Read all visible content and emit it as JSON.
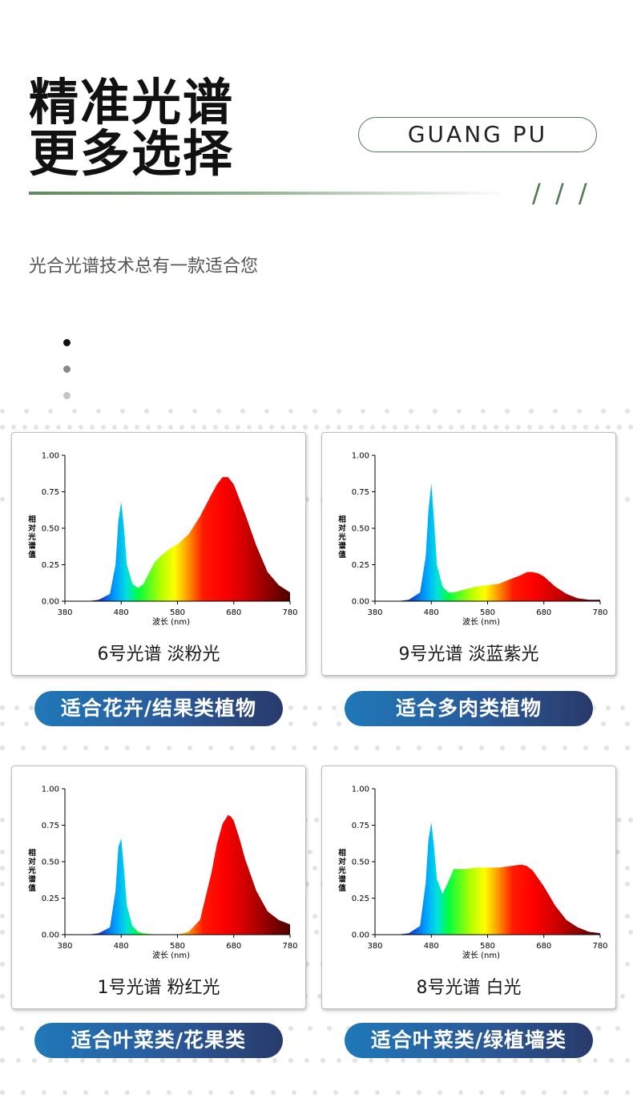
{
  "header": {
    "title_line1": "精准光谱",
    "title_line2": "更多选择",
    "tag": "GUANG PU",
    "slashes": "/ / /",
    "subtitle": "光合光谱技术总有一款适合您"
  },
  "axis": {
    "x_ticks": [
      "380",
      "480",
      "580",
      "680",
      "780"
    ],
    "y_ticks": [
      "0.00",
      "0.25",
      "0.50",
      "0.75",
      "1.00"
    ],
    "xlabel": "波长 (nm)",
    "ylabel": "相对光谱值"
  },
  "cards": [
    {
      "caption": "6号光谱 淡粉光",
      "pill": "适合花卉/结果类植物"
    },
    {
      "caption": "9号光谱 淡蓝紫光",
      "pill": "适合多肉类植物"
    },
    {
      "caption": "1号光谱 粉红光",
      "pill": "适合叶菜类/花果类"
    },
    {
      "caption": "8号光谱 白光",
      "pill": "适合叶菜类/绿植墙类"
    }
  ],
  "chart_data": [
    {
      "type": "area",
      "title": "6号光谱 淡粉光",
      "xlabel": "波长 (nm)",
      "ylabel": "相对光谱值",
      "xlim": [
        380,
        780
      ],
      "ylim": [
        0,
        1
      ],
      "x": [
        380,
        420,
        440,
        460,
        470,
        475,
        480,
        485,
        490,
        500,
        510,
        520,
        530,
        540,
        550,
        560,
        570,
        580,
        600,
        620,
        640,
        650,
        660,
        670,
        680,
        700,
        720,
        740,
        760,
        780
      ],
      "values": [
        0.0,
        0.0,
        0.01,
        0.05,
        0.25,
        0.55,
        0.68,
        0.5,
        0.25,
        0.12,
        0.09,
        0.12,
        0.2,
        0.27,
        0.31,
        0.34,
        0.37,
        0.39,
        0.46,
        0.58,
        0.73,
        0.8,
        0.85,
        0.85,
        0.8,
        0.6,
        0.38,
        0.2,
        0.11,
        0.06
      ]
    },
    {
      "type": "area",
      "title": "9号光谱 淡蓝紫光",
      "xlabel": "波长 (nm)",
      "ylabel": "相对光谱值",
      "xlim": [
        380,
        780
      ],
      "ylim": [
        0,
        1
      ],
      "x": [
        380,
        420,
        440,
        460,
        470,
        475,
        480,
        485,
        490,
        500,
        510,
        520,
        530,
        540,
        560,
        580,
        600,
        620,
        640,
        650,
        660,
        670,
        680,
        700,
        720,
        740,
        760,
        780
      ],
      "values": [
        0.0,
        0.0,
        0.01,
        0.06,
        0.3,
        0.62,
        0.81,
        0.55,
        0.25,
        0.1,
        0.06,
        0.06,
        0.07,
        0.08,
        0.1,
        0.11,
        0.12,
        0.15,
        0.18,
        0.2,
        0.2,
        0.19,
        0.17,
        0.1,
        0.05,
        0.02,
        0.01,
        0.01
      ]
    },
    {
      "type": "area",
      "title": "1号光谱 粉红光",
      "xlabel": "波长 (nm)",
      "ylabel": "相对光谱值",
      "xlim": [
        380,
        780
      ],
      "ylim": [
        0,
        1
      ],
      "x": [
        380,
        420,
        440,
        460,
        470,
        475,
        480,
        485,
        490,
        500,
        510,
        520,
        540,
        560,
        580,
        600,
        620,
        640,
        650,
        660,
        670,
        675,
        680,
        690,
        700,
        720,
        740,
        760,
        780
      ],
      "values": [
        0.0,
        0.0,
        0.01,
        0.05,
        0.3,
        0.6,
        0.66,
        0.45,
        0.2,
        0.06,
        0.02,
        0.01,
        0.0,
        0.0,
        0.0,
        0.02,
        0.1,
        0.42,
        0.62,
        0.76,
        0.82,
        0.81,
        0.78,
        0.66,
        0.52,
        0.3,
        0.16,
        0.1,
        0.07
      ]
    },
    {
      "type": "area",
      "title": "8号光谱 白光",
      "xlabel": "波长 (nm)",
      "ylabel": "相对光谱值",
      "xlim": [
        380,
        780
      ],
      "ylim": [
        0,
        1
      ],
      "x": [
        380,
        420,
        440,
        460,
        470,
        475,
        480,
        485,
        490,
        500,
        510,
        520,
        530,
        540,
        560,
        580,
        600,
        620,
        640,
        650,
        660,
        680,
        700,
        720,
        740,
        760,
        780
      ],
      "values": [
        0.0,
        0.0,
        0.01,
        0.06,
        0.35,
        0.65,
        0.77,
        0.6,
        0.38,
        0.28,
        0.36,
        0.45,
        0.45,
        0.45,
        0.46,
        0.46,
        0.46,
        0.47,
        0.48,
        0.47,
        0.44,
        0.33,
        0.2,
        0.1,
        0.05,
        0.02,
        0.01
      ]
    }
  ]
}
